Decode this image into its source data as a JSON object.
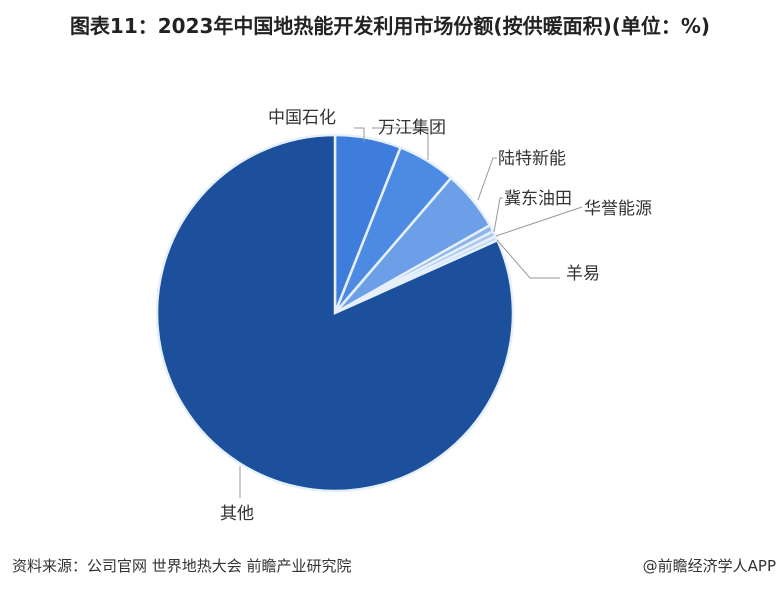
{
  "chart_data": {
    "type": "pie",
    "title": "图表11：2023年中国地热能开发利用市场份额(按供暖面积)(单位：%)",
    "start_angle": "12 o'clock",
    "direction": "clockwise",
    "slices": [
      {
        "label": "中国石化",
        "value": 6.0,
        "color": "#3e7ddc"
      },
      {
        "label": "万江集团",
        "value": 5.3,
        "color": "#4d8ae3"
      },
      {
        "label": "陆特新能",
        "value": 5.5,
        "color": "#6c9fe8"
      },
      {
        "label": "冀东油田",
        "value": 0.6,
        "color": "#8cb5ee"
      },
      {
        "label": "华誉能源",
        "value": 0.5,
        "color": "#a9c7f2"
      },
      {
        "label": "羊易",
        "value": 0.4,
        "color": "#c3d8f6"
      },
      {
        "label": "其他",
        "value": 81.7,
        "color": "#1c4f9c"
      }
    ]
  },
  "footer": {
    "source": "资料来源：公司官网 世界地热大会 前瞻产业研究院",
    "brand": "@前瞻经济学人APP"
  }
}
